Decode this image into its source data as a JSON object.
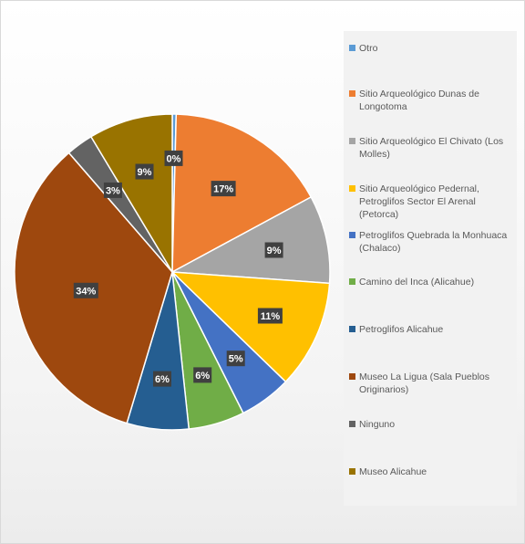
{
  "chart_data": {
    "type": "pie",
    "title": "",
    "legend_position": "right",
    "categories": [
      "Otro",
      "Sitio Arqueológico Dunas de Longotoma",
      "Sitio Arqueológico El Chivato (Los Molles)",
      "Sitio Arqueológico Pedernal, Petroglifos Sector El Arenal (Petorca)",
      "Petroglifos Quebrada la Monhuaca (Chalaco)",
      "Camino del Inca (Alicahue)",
      "Petroglifos Alicahue",
      "Museo La Ligua (Sala Pueblos Originarios)",
      "Ninguno",
      "Museo Alicahue"
    ],
    "values": [
      0.4,
      16.9,
      9.1,
      11.2,
      5.4,
      5.8,
      6.4,
      34.3,
      2.8,
      8.7
    ],
    "data_labels": [
      "0%",
      "17%",
      "9%",
      "11%",
      "5%",
      "6%",
      "6%",
      "34%",
      "3%",
      "9%"
    ],
    "colors": [
      "#5b9bd5",
      "#ed7d31",
      "#a5a5a5",
      "#ffc000",
      "#4472c4",
      "#70ad47",
      "#255e91",
      "#9e480e",
      "#636363",
      "#997300"
    ]
  }
}
